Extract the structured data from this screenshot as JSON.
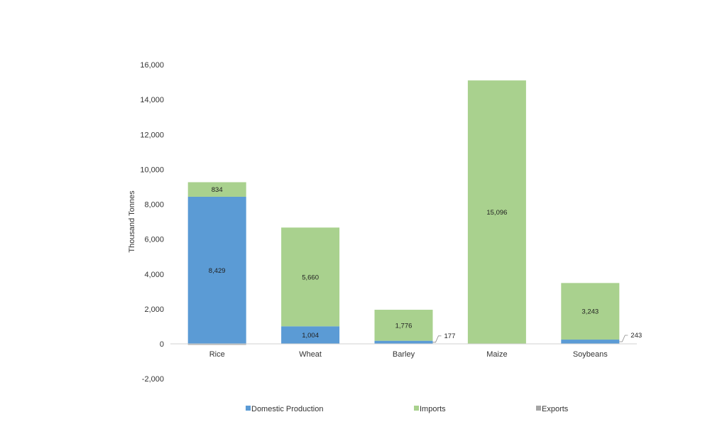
{
  "chart_data": {
    "type": "bar",
    "stacked": true,
    "title": "",
    "xlabel": "",
    "ylabel": "Thousand Tonnes",
    "ylim": [
      -2000,
      16000
    ],
    "yticks": [
      -2000,
      0,
      2000,
      4000,
      6000,
      8000,
      10000,
      12000,
      14000,
      16000
    ],
    "ytick_labels": [
      "-2,000",
      "0",
      "2,000",
      "4,000",
      "6,000",
      "8,000",
      "10,000",
      "12,000",
      "14,000",
      "16,000"
    ],
    "grid": false,
    "legend": "bottom",
    "categories": [
      "Rice",
      "Wheat",
      "Barley",
      "Maize",
      "Soybeans"
    ],
    "series": [
      {
        "name": "Domestic Production",
        "color": "#5b9bd5",
        "values": [
          8429,
          1004,
          177,
          0,
          243
        ],
        "labels": [
          "8,429",
          "1,004",
          "177",
          "",
          "243"
        ]
      },
      {
        "name": "Imports",
        "color": "#a9d18e",
        "values": [
          834,
          5660,
          1776,
          15096,
          3243
        ],
        "labels": [
          "834",
          "5,660",
          "1,776",
          "15,096",
          "3,243"
        ]
      },
      {
        "name": "Exports",
        "color": "#a5a5a5",
        "values": [
          -60,
          0,
          0,
          0,
          0
        ],
        "labels": [
          "",
          "",
          "",
          "",
          ""
        ]
      }
    ]
  }
}
